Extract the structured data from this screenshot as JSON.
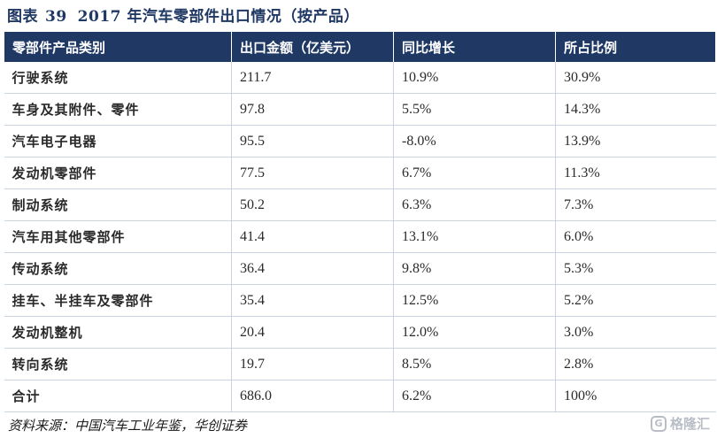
{
  "title": {
    "label": "图表",
    "number": "39",
    "text": "2017 年汽车零部件出口情况（按产品）"
  },
  "table": {
    "headers": [
      "零部件产品类别",
      "出口金额（亿美元）",
      "同比增长",
      "所占比例"
    ],
    "rows": [
      [
        "行驶系统",
        "211.7",
        "10.9%",
        "30.9%"
      ],
      [
        "车身及其附件、零件",
        "97.8",
        "5.5%",
        "14.3%"
      ],
      [
        "汽车电子电器",
        "95.5",
        "-8.0%",
        "13.9%"
      ],
      [
        "发动机零部件",
        "77.5",
        "6.7%",
        "11.3%"
      ],
      [
        "制动系统",
        "50.2",
        "6.3%",
        "7.3%"
      ],
      [
        "汽车用其他零部件",
        "41.4",
        "13.1%",
        "6.0%"
      ],
      [
        "传动系统",
        "36.4",
        "9.8%",
        "5.3%"
      ],
      [
        "挂车、半挂车及零部件",
        "35.4",
        "12.5%",
        "5.2%"
      ],
      [
        "发动机整机",
        "20.4",
        "12.0%",
        "3.0%"
      ],
      [
        "转向系统",
        "19.7",
        "8.5%",
        "2.8%"
      ],
      [
        "合计",
        "686.0",
        "6.2%",
        "100%"
      ]
    ]
  },
  "source": "资料来源：中国汽车工业年鉴，华创证券",
  "watermark": {
    "icon": "g-logo-icon",
    "text": "格隆汇"
  },
  "colors": {
    "header_bg": "#1f3864",
    "title_text": "#1f3864",
    "grid_line": "#c9d3e2"
  }
}
